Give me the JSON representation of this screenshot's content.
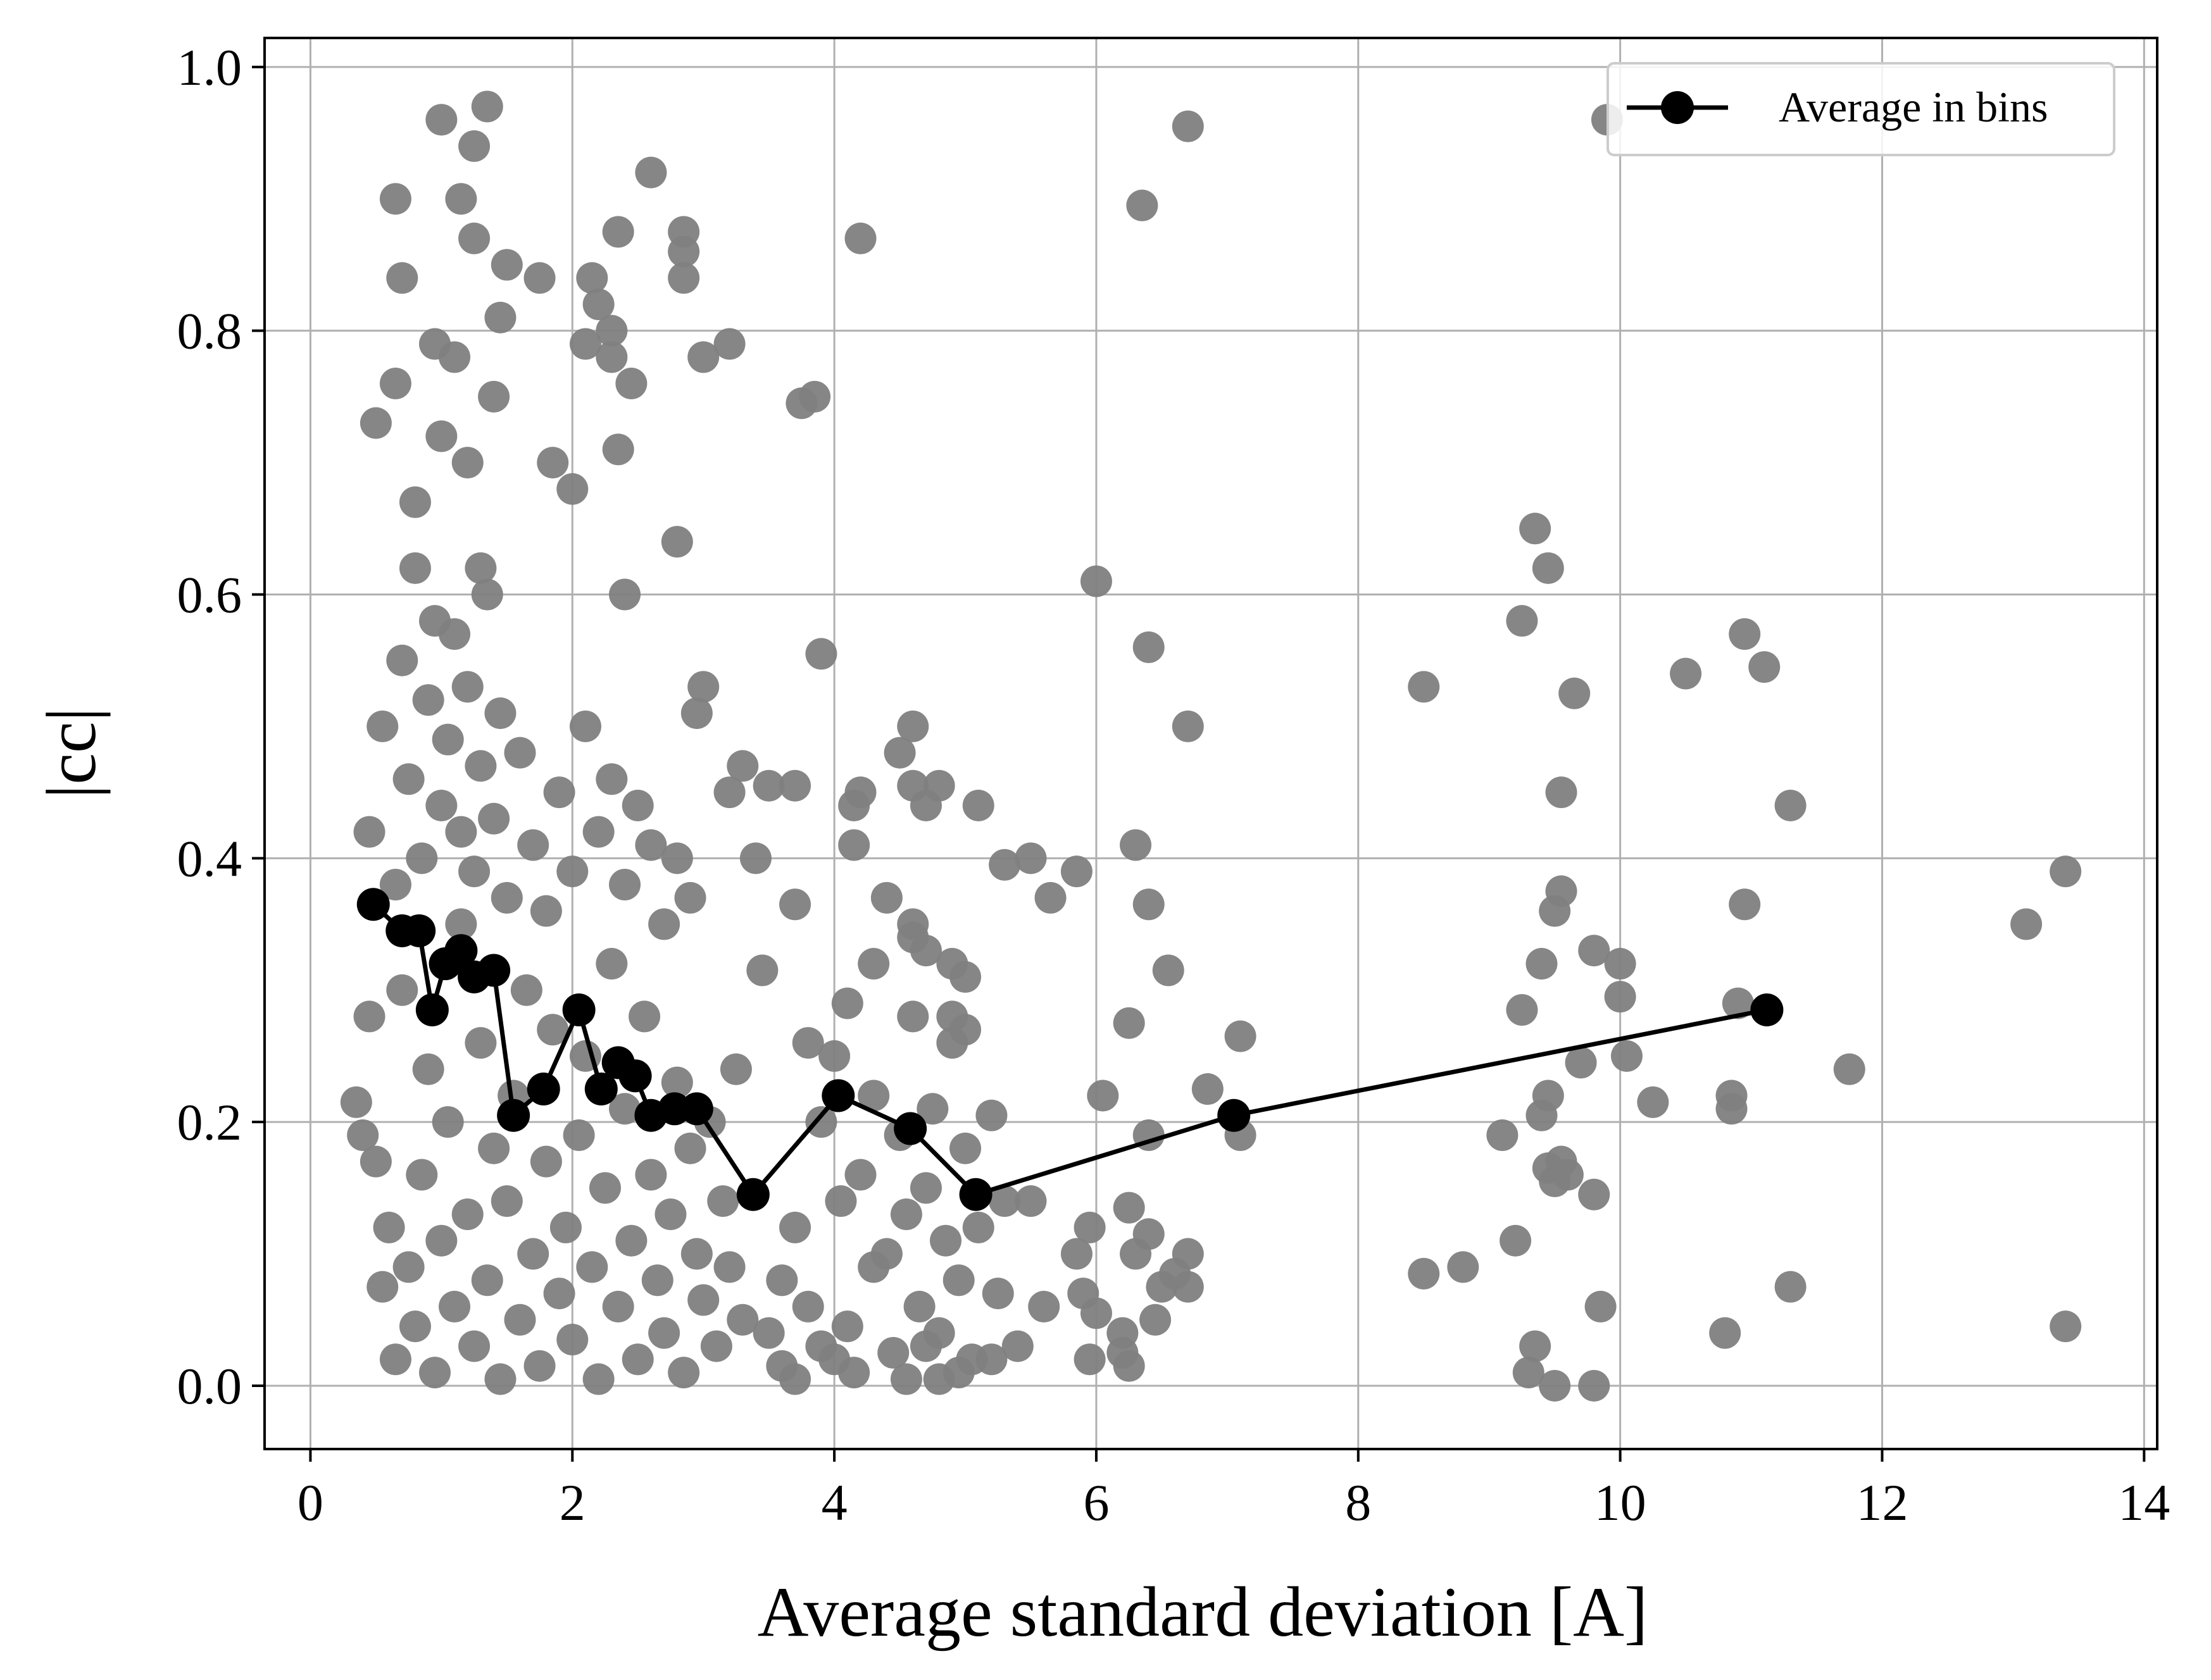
{
  "chart_data": {
    "type": "scatter",
    "xlabel": "Average standard deviation [A]",
    "ylabel": "|cc|",
    "xlim": [
      -0.35,
      14.1
    ],
    "ylim": [
      -0.048,
      1.022
    ],
    "xticks": [
      0,
      2,
      4,
      6,
      8,
      10,
      12,
      14
    ],
    "xtick_labels": [
      "0",
      "2",
      "4",
      "6",
      "8",
      "10",
      "12",
      "14"
    ],
    "yticks": [
      0.0,
      0.2,
      0.4,
      0.6,
      0.8,
      1.0
    ],
    "ytick_labels": [
      "0.0",
      "0.2",
      "0.4",
      "0.6",
      "0.8",
      "1.0"
    ],
    "grid": true,
    "legend": {
      "position": "top-right",
      "entries": [
        "Average in bins"
      ]
    },
    "colors": {
      "scatter": "#808080",
      "line": "#000000",
      "grid": "#b0b0b0"
    },
    "series": [
      {
        "kind": "scatter",
        "points": [
          [
            0.35,
            0.215
          ],
          [
            0.4,
            0.19
          ],
          [
            0.45,
            0.28
          ],
          [
            0.5,
            0.17
          ],
          [
            0.55,
            0.075
          ],
          [
            0.6,
            0.12
          ],
          [
            0.65,
            0.02
          ],
          [
            0.7,
            0.3
          ],
          [
            0.75,
            0.09
          ],
          [
            0.8,
            0.045
          ],
          [
            0.85,
            0.16
          ],
          [
            0.9,
            0.24
          ],
          [
            0.95,
            0.01
          ],
          [
            1.0,
            0.11
          ],
          [
            1.05,
            0.2
          ],
          [
            1.1,
            0.06
          ],
          [
            1.15,
            0.35
          ],
          [
            1.2,
            0.13
          ],
          [
            1.25,
            0.03
          ],
          [
            1.3,
            0.26
          ],
          [
            1.35,
            0.08
          ],
          [
            1.4,
            0.18
          ],
          [
            1.45,
            0.005
          ],
          [
            1.5,
            0.14
          ],
          [
            1.55,
            0.22
          ],
          [
            1.6,
            0.05
          ],
          [
            1.65,
            0.3
          ],
          [
            1.7,
            0.1
          ],
          [
            1.75,
            0.015
          ],
          [
            1.8,
            0.17
          ],
          [
            1.85,
            0.27
          ],
          [
            1.9,
            0.07
          ],
          [
            1.95,
            0.12
          ],
          [
            2.0,
            0.035
          ],
          [
            2.05,
            0.19
          ],
          [
            2.1,
            0.25
          ],
          [
            2.15,
            0.09
          ],
          [
            2.2,
            0.005
          ],
          [
            2.25,
            0.15
          ],
          [
            2.3,
            0.32
          ],
          [
            2.35,
            0.06
          ],
          [
            2.4,
            0.21
          ],
          [
            2.45,
            0.11
          ],
          [
            2.5,
            0.02
          ],
          [
            2.55,
            0.28
          ],
          [
            2.6,
            0.16
          ],
          [
            2.65,
            0.08
          ],
          [
            2.7,
            0.04
          ],
          [
            2.75,
            0.13
          ],
          [
            2.8,
            0.23
          ],
          [
            2.85,
            0.01
          ],
          [
            2.9,
            0.18
          ],
          [
            2.95,
            0.1
          ],
          [
            3.0,
            0.065
          ],
          [
            3.05,
            0.2
          ],
          [
            3.1,
            0.03
          ],
          [
            3.15,
            0.14
          ],
          [
            3.2,
            0.09
          ],
          [
            3.25,
            0.24
          ],
          [
            3.3,
            0.05
          ],
          [
            0.45,
            0.42
          ],
          [
            0.55,
            0.5
          ],
          [
            0.65,
            0.38
          ],
          [
            0.7,
            0.55
          ],
          [
            0.75,
            0.46
          ],
          [
            0.8,
            0.62
          ],
          [
            0.85,
            0.4
          ],
          [
            0.9,
            0.52
          ],
          [
            0.95,
            0.58
          ],
          [
            1.0,
            0.44
          ],
          [
            1.05,
            0.49
          ],
          [
            1.1,
            0.57
          ],
          [
            1.15,
            0.42
          ],
          [
            1.2,
            0.53
          ],
          [
            1.25,
            0.39
          ],
          [
            1.3,
            0.47
          ],
          [
            1.35,
            0.6
          ],
          [
            1.4,
            0.43
          ],
          [
            1.45,
            0.51
          ],
          [
            1.5,
            0.37
          ],
          [
            1.6,
            0.48
          ],
          [
            1.7,
            0.41
          ],
          [
            1.8,
            0.36
          ],
          [
            1.9,
            0.45
          ],
          [
            2.0,
            0.39
          ],
          [
            2.1,
            0.5
          ],
          [
            2.2,
            0.42
          ],
          [
            2.3,
            0.46
          ],
          [
            2.4,
            0.38
          ],
          [
            2.5,
            0.44
          ],
          [
            2.6,
            0.41
          ],
          [
            2.7,
            0.35
          ],
          [
            2.8,
            0.4
          ],
          [
            2.9,
            0.37
          ],
          [
            0.8,
            0.67
          ],
          [
            1.0,
            0.72
          ],
          [
            1.2,
            0.7
          ],
          [
            1.4,
            0.75
          ],
          [
            0.95,
            0.79
          ],
          [
            1.1,
            0.78
          ],
          [
            0.5,
            0.73
          ],
          [
            0.65,
            0.76
          ],
          [
            1.3,
            0.62
          ],
          [
            1.75,
            0.84
          ],
          [
            1.85,
            0.7
          ],
          [
            2.0,
            0.68
          ],
          [
            2.1,
            0.79
          ],
          [
            2.15,
            0.84
          ],
          [
            2.3,
            0.8
          ],
          [
            2.35,
            0.71
          ],
          [
            2.4,
            0.6
          ],
          [
            2.45,
            0.76
          ],
          [
            2.3,
            0.78
          ],
          [
            2.2,
            0.82
          ],
          [
            1.5,
            0.85
          ],
          [
            1.45,
            0.81
          ],
          [
            1.25,
            0.87
          ],
          [
            1.15,
            0.9
          ],
          [
            1.25,
            0.94
          ],
          [
            1.0,
            0.96
          ],
          [
            1.35,
            0.97
          ],
          [
            0.7,
            0.84
          ],
          [
            0.65,
            0.9
          ],
          [
            2.35,
            0.875
          ],
          [
            2.6,
            0.92
          ],
          [
            2.85,
            0.875
          ],
          [
            2.85,
            0.86
          ],
          [
            2.85,
            0.84
          ],
          [
            3.0,
            0.78
          ],
          [
            3.2,
            0.79
          ],
          [
            2.8,
            0.64
          ],
          [
            2.95,
            0.51
          ],
          [
            3.0,
            0.53
          ],
          [
            3.2,
            0.45
          ],
          [
            3.3,
            0.47
          ],
          [
            3.4,
            0.4
          ],
          [
            3.5,
            0.455
          ],
          [
            3.7,
            0.455
          ],
          [
            3.7,
            0.365
          ],
          [
            3.75,
            0.745
          ],
          [
            3.85,
            0.75
          ],
          [
            3.9,
            0.555
          ],
          [
            4.2,
            0.87
          ],
          [
            4.15,
            0.44
          ],
          [
            4.2,
            0.45
          ],
          [
            4.15,
            0.41
          ],
          [
            4.3,
            0.32
          ],
          [
            4.4,
            0.37
          ],
          [
            4.5,
            0.48
          ],
          [
            4.6,
            0.5
          ],
          [
            4.6,
            0.455
          ],
          [
            4.7,
            0.44
          ],
          [
            4.8,
            0.455
          ],
          [
            4.6,
            0.35
          ],
          [
            4.6,
            0.34
          ],
          [
            4.7,
            0.33
          ],
          [
            4.9,
            0.32
          ],
          [
            5.0,
            0.31
          ],
          [
            5.0,
            0.27
          ],
          [
            4.9,
            0.28
          ],
          [
            5.1,
            0.44
          ],
          [
            5.3,
            0.395
          ],
          [
            5.5,
            0.4
          ],
          [
            5.65,
            0.37
          ],
          [
            5.85,
            0.39
          ],
          [
            3.45,
            0.315
          ],
          [
            3.6,
            0.08
          ],
          [
            3.7,
            0.12
          ],
          [
            3.8,
            0.26
          ],
          [
            3.9,
            0.2
          ],
          [
            4.0,
            0.25
          ],
          [
            4.05,
            0.14
          ],
          [
            4.1,
            0.29
          ],
          [
            4.2,
            0.16
          ],
          [
            4.3,
            0.22
          ],
          [
            4.4,
            0.1
          ],
          [
            4.5,
            0.19
          ],
          [
            4.55,
            0.13
          ],
          [
            4.6,
            0.28
          ],
          [
            4.65,
            0.06
          ],
          [
            4.7,
            0.15
          ],
          [
            4.75,
            0.21
          ],
          [
            4.8,
            0.04
          ],
          [
            4.85,
            0.11
          ],
          [
            4.9,
            0.26
          ],
          [
            4.95,
            0.08
          ],
          [
            5.0,
            0.18
          ],
          [
            5.05,
            0.02
          ],
          [
            5.1,
            0.12
          ],
          [
            5.2,
            0.205
          ],
          [
            5.25,
            0.07
          ],
          [
            5.3,
            0.14
          ],
          [
            5.4,
            0.03
          ],
          [
            5.5,
            0.14
          ],
          [
            5.6,
            0.06
          ],
          [
            3.5,
            0.04
          ],
          [
            3.6,
            0.015
          ],
          [
            3.7,
            0.005
          ],
          [
            3.8,
            0.06
          ],
          [
            3.9,
            0.03
          ],
          [
            4.0,
            0.02
          ],
          [
            4.1,
            0.045
          ],
          [
            4.15,
            0.01
          ],
          [
            4.3,
            0.09
          ],
          [
            4.45,
            0.025
          ],
          [
            4.55,
            0.005
          ],
          [
            4.7,
            0.03
          ],
          [
            4.8,
            0.005
          ],
          [
            4.95,
            0.01
          ],
          [
            5.2,
            0.02
          ],
          [
            6.0,
            0.61
          ],
          [
            6.35,
            0.895
          ],
          [
            6.7,
            0.955
          ],
          [
            6.4,
            0.56
          ],
          [
            6.7,
            0.5
          ],
          [
            6.3,
            0.41
          ],
          [
            6.4,
            0.365
          ],
          [
            6.55,
            0.315
          ],
          [
            6.25,
            0.275
          ],
          [
            6.05,
            0.22
          ],
          [
            6.4,
            0.19
          ],
          [
            6.85,
            0.225
          ],
          [
            7.1,
            0.265
          ],
          [
            7.1,
            0.19
          ],
          [
            5.85,
            0.1
          ],
          [
            5.9,
            0.07
          ],
          [
            5.95,
            0.12
          ],
          [
            6.0,
            0.055
          ],
          [
            5.95,
            0.02
          ],
          [
            6.2,
            0.04
          ],
          [
            6.25,
            0.135
          ],
          [
            6.3,
            0.1
          ],
          [
            6.4,
            0.115
          ],
          [
            6.5,
            0.075
          ],
          [
            6.45,
            0.05
          ],
          [
            6.6,
            0.085
          ],
          [
            6.7,
            0.1
          ],
          [
            6.7,
            0.075
          ],
          [
            6.25,
            0.015
          ],
          [
            6.2,
            0.025
          ],
          [
            8.5,
            0.53
          ],
          [
            8.5,
            0.085
          ],
          [
            8.8,
            0.09
          ],
          [
            9.25,
            0.58
          ],
          [
            9.35,
            0.65
          ],
          [
            9.45,
            0.62
          ],
          [
            9.55,
            0.375
          ],
          [
            9.5,
            0.36
          ],
          [
            9.55,
            0.45
          ],
          [
            9.65,
            0.525
          ],
          [
            9.4,
            0.32
          ],
          [
            9.7,
            0.245
          ],
          [
            9.8,
            0.33
          ],
          [
            9.25,
            0.285
          ],
          [
            9.4,
            0.205
          ],
          [
            9.45,
            0.22
          ],
          [
            9.1,
            0.19
          ],
          [
            9.45,
            0.165
          ],
          [
            9.5,
            0.155
          ],
          [
            9.55,
            0.17
          ],
          [
            9.6,
            0.16
          ],
          [
            9.8,
            0.145
          ],
          [
            9.85,
            0.06
          ],
          [
            9.2,
            0.11
          ],
          [
            9.35,
            0.03
          ],
          [
            9.3,
            0.01
          ],
          [
            9.5,
            0.0
          ],
          [
            9.8,
            0.0
          ],
          [
            9.9,
            0.96
          ],
          [
            10.0,
            0.32
          ],
          [
            10.05,
            0.25
          ],
          [
            10.0,
            0.295
          ],
          [
            10.25,
            0.215
          ],
          [
            10.5,
            0.54
          ],
          [
            10.95,
            0.57
          ],
          [
            10.95,
            0.365
          ],
          [
            11.1,
            0.545
          ],
          [
            10.9,
            0.29
          ],
          [
            10.85,
            0.22
          ],
          [
            10.85,
            0.21
          ],
          [
            10.8,
            0.04
          ],
          [
            11.3,
            0.44
          ],
          [
            11.3,
            0.075
          ],
          [
            11.75,
            0.24
          ],
          [
            13.1,
            0.35
          ],
          [
            13.4,
            0.39
          ],
          [
            13.4,
            0.045
          ]
        ]
      },
      {
        "kind": "line",
        "name": "Average in bins",
        "points": [
          [
            0.48,
            0.365
          ],
          [
            0.7,
            0.345
          ],
          [
            0.83,
            0.345
          ],
          [
            0.93,
            0.285
          ],
          [
            1.03,
            0.32
          ],
          [
            1.15,
            0.33
          ],
          [
            1.25,
            0.31
          ],
          [
            1.4,
            0.315
          ],
          [
            1.55,
            0.205
          ],
          [
            1.78,
            0.225
          ],
          [
            2.05,
            0.285
          ],
          [
            2.22,
            0.225
          ],
          [
            2.35,
            0.245
          ],
          [
            2.48,
            0.235
          ],
          [
            2.6,
            0.205
          ],
          [
            2.78,
            0.21
          ],
          [
            2.95,
            0.21
          ],
          [
            3.38,
            0.145
          ],
          [
            4.03,
            0.22
          ],
          [
            4.58,
            0.195
          ],
          [
            5.08,
            0.145
          ],
          [
            7.05,
            0.205
          ],
          [
            11.12,
            0.285
          ]
        ]
      }
    ]
  }
}
